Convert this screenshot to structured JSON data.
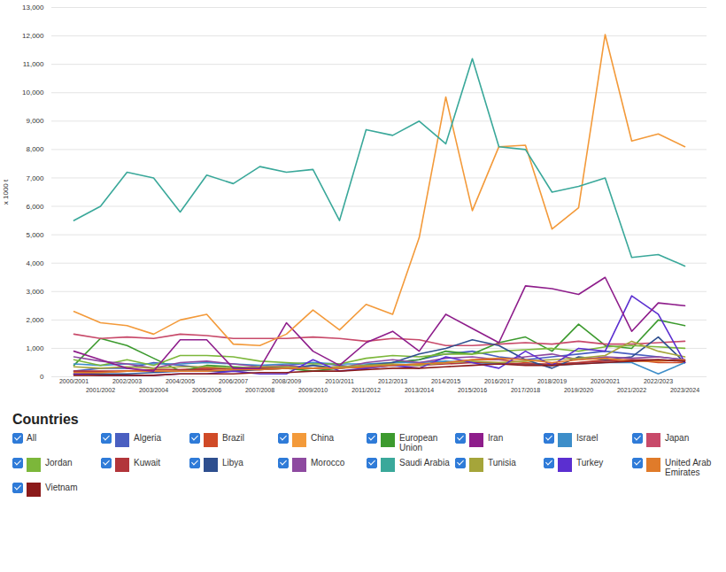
{
  "chart_data": {
    "type": "line",
    "y_label": "x 1000 t",
    "legend_title": "Countries",
    "legend_all": "All",
    "legend": "bottom",
    "grid": true,
    "x": [
      "2000/2001",
      "2001/2002",
      "2002/2003",
      "2003/2004",
      "2004/2005",
      "2005/2006",
      "2006/2007",
      "2007/2008",
      "2008/2009",
      "2009/2010",
      "2010/2011",
      "2011/2012",
      "2012/2013",
      "2013/2014",
      "2014/2015",
      "2015/2016",
      "2016/2017",
      "2017/2018",
      "2018/2019",
      "2019/2020",
      "2020/2021",
      "2021/2022",
      "2022/2023",
      "2023/2024"
    ],
    "ylim": [
      0,
      13000
    ],
    "yticks": [
      0,
      {
        "value": 1000,
        "label": "1,000"
      },
      {
        "value": 2000,
        "label": "2,000"
      },
      {
        "value": 3000,
        "label": "3,000"
      },
      {
        "value": 4000,
        "label": "4,000"
      },
      {
        "value": 5000,
        "label": "5,000"
      },
      {
        "value": 6000,
        "label": "6,000"
      },
      {
        "value": 7000,
        "label": "7,000"
      },
      {
        "value": 8000,
        "label": "8,000"
      },
      {
        "value": 9000,
        "label": "9,000"
      },
      {
        "value": 10000,
        "label": "10,000"
      },
      {
        "value": 11000,
        "label": "11,000"
      },
      {
        "value": 12000,
        "label": "12,000"
      },
      {
        "value": 13000,
        "label": "13,000"
      }
    ],
    "series": [
      {
        "name": "Algeria",
        "color": "#4a5fc1",
        "values": [
          200,
          300,
          300,
          500,
          400,
          300,
          300,
          300,
          400,
          500,
          400,
          300,
          500,
          600,
          800,
          900,
          700,
          600,
          700,
          800,
          900,
          800,
          700,
          600
        ]
      },
      {
        "name": "Brazil",
        "color": "#d04a27",
        "values": [
          100,
          150,
          200,
          250,
          250,
          300,
          300,
          250,
          300,
          300,
          350,
          300,
          400,
          450,
          500,
          600,
          600,
          500,
          400,
          500,
          600,
          600,
          500,
          500
        ]
      },
      {
        "name": "European Union",
        "color": "#3c9a2e",
        "values": [
          400,
          1350,
          1100,
          650,
          200,
          400,
          350,
          300,
          300,
          200,
          300,
          400,
          500,
          600,
          900,
          800,
          1200,
          1400,
          900,
          1850,
          1100,
          1000,
          2000,
          1800
        ]
      },
      {
        "name": "Israel",
        "color": "#3d8ec9",
        "values": [
          450,
          400,
          450,
          450,
          450,
          500,
          450,
          400,
          450,
          500,
          450,
          450,
          500,
          500,
          550,
          500,
          450,
          450,
          400,
          450,
          500,
          500,
          100,
          500
        ]
      },
      {
        "name": "Japan",
        "color": "#c84a6a",
        "values": [
          1500,
          1350,
          1400,
          1350,
          1500,
          1450,
          1350,
          1350,
          1350,
          1400,
          1350,
          1250,
          1350,
          1300,
          1100,
          1100,
          1150,
          1200,
          1150,
          1250,
          1150,
          1150,
          1200,
          1250
        ]
      },
      {
        "name": "Jordan",
        "color": "#7cb73a",
        "values": [
          600,
          400,
          600,
          400,
          750,
          750,
          700,
          550,
          500,
          450,
          450,
          650,
          750,
          700,
          800,
          800,
          900,
          950,
          1000,
          900,
          1050,
          1100,
          1050,
          1000
        ]
      },
      {
        "name": "Kuwait",
        "color": "#b2353a",
        "values": [
          200,
          200,
          200,
          250,
          250,
          250,
          300,
          300,
          300,
          300,
          350,
          350,
          400,
          400,
          450,
          500,
          500,
          450,
          450,
          500,
          550,
          600,
          600,
          550
        ]
      },
      {
        "name": "Libya",
        "color": "#2e4f8f",
        "values": [
          100,
          100,
          100,
          150,
          200,
          200,
          200,
          250,
          300,
          400,
          300,
          400,
          500,
          800,
          1000,
          1300,
          1100,
          600,
          300,
          700,
          600,
          700,
          1400,
          500
        ]
      },
      {
        "name": "Morocco",
        "color": "#8e4aa0",
        "values": [
          700,
          550,
          450,
          300,
          500,
          550,
          450,
          350,
          400,
          300,
          300,
          500,
          600,
          500,
          650,
          700,
          600,
          700,
          800,
          600,
          700,
          650,
          700,
          600
        ]
      },
      {
        "name": "Tunisia",
        "color": "#a5a53a",
        "values": [
          350,
          300,
          350,
          300,
          350,
          350,
          300,
          350,
          350,
          300,
          350,
          400,
          450,
          400,
          500,
          550,
          500,
          550,
          600,
          650,
          750,
          1250,
          900,
          700
        ]
      },
      {
        "name": "Turkey",
        "color": "#5b2fd0",
        "values": [
          100,
          50,
          50,
          50,
          100,
          100,
          200,
          100,
          100,
          600,
          200,
          300,
          400,
          300,
          700,
          500,
          300,
          900,
          400,
          1000,
          900,
          2850,
          2200,
          500
        ]
      },
      {
        "name": "United Arab Emirates",
        "color": "#e07b2a",
        "values": [
          150,
          150,
          200,
          200,
          200,
          200,
          250,
          250,
          300,
          300,
          300,
          350,
          400,
          450,
          500,
          600,
          650,
          600,
          500,
          600,
          650,
          550,
          550,
          600
        ]
      },
      {
        "name": "Vietnam",
        "color": "#8b1a1a",
        "values": [
          50,
          50,
          50,
          50,
          100,
          100,
          100,
          150,
          150,
          200,
          200,
          250,
          300,
          300,
          350,
          400,
          450,
          400,
          400,
          450,
          500,
          550,
          600,
          550
        ]
      },
      {
        "name": "Iran",
        "color": "#8e1d8b",
        "values": [
          900,
          600,
          300,
          200,
          1300,
          1300,
          300,
          300,
          1900,
          900,
          400,
          1200,
          1600,
          900,
          2200,
          1700,
          1200,
          3200,
          3100,
          2900,
          3500,
          1600,
          2600,
          2500
        ]
      },
      {
        "name": "China",
        "color": "#f39a3a",
        "values": [
          2300,
          1900,
          1800,
          1500,
          2000,
          2200,
          1150,
          1100,
          1500,
          2350,
          1650,
          2550,
          2200,
          4900,
          9850,
          5850,
          8100,
          8150,
          5200,
          5950,
          12050,
          8300,
          8550,
          8100
        ]
      },
      {
        "name": "Saudi Arabia",
        "color": "#3aa89a",
        "values": [
          5500,
          6000,
          7200,
          7000,
          5800,
          7100,
          6800,
          7400,
          7200,
          7300,
          5500,
          8700,
          8500,
          9000,
          8200,
          11200,
          8100,
          8000,
          6500,
          6700,
          7000,
          4200,
          4300,
          3900
        ]
      }
    ],
    "legend_order": [
      "Algeria",
      "Brazil",
      "China",
      "European Union",
      "Iran",
      "Israel",
      "Japan",
      "Jordan",
      "Kuwait",
      "Libya",
      "Morocco",
      "Saudi Arabia",
      "Tunisia",
      "Turkey",
      "United Arab Emirates",
      "Vietnam"
    ]
  }
}
